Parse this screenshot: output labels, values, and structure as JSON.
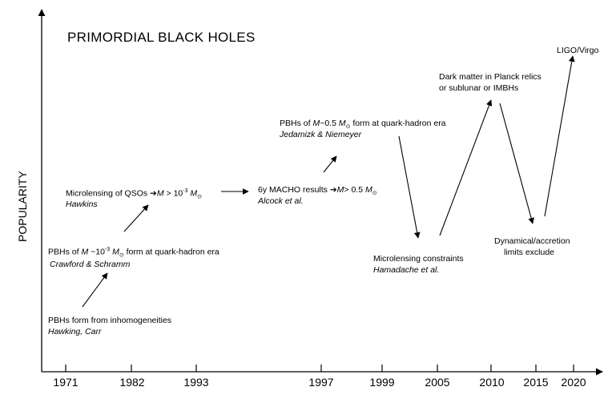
{
  "title": "PRIMORDIAL BLACK HOLES",
  "ylabel": "POPULARITY",
  "years": [
    "1971",
    "1982",
    "1993",
    "1997",
    "1999",
    "2005",
    "2010",
    "2015",
    "2020"
  ],
  "events": {
    "pbh_inhomogeneities": {
      "text": "PBHs form from inhomogeneities",
      "cite": "Hawking, Carr"
    },
    "pbh_quark_hadron_1": {
      "prefix": "PBHs of ",
      "mid": " ~10",
      "exp": "-3",
      "suffix": " form at quark-hadron era",
      "cite": "Crawford & Schramm"
    },
    "microlensing_qsos": {
      "prefix": "Microlensing of QSOs ",
      "mid": " > 10",
      "exp": "-3",
      "cite": "Hawkins"
    },
    "macho": {
      "prefix": "6y MACHO results ",
      "mid": "> 0.5 ",
      "cite": "Alcock et al."
    },
    "pbh_quark_hadron_2": {
      "prefix": "PBHs of ",
      "mid": "~0.5 ",
      "suffix": " form at quark-hadron era",
      "cite": "Jedamizk & Niemeyer"
    },
    "microlensing_constraints": {
      "text": "Microlensing constraints",
      "cite": "Hamadache et al."
    },
    "dark_matter": {
      "line1": "Dark  matter in Planck relics",
      "line2": "or sublunar or IMBHs"
    },
    "dynamical": {
      "line1": "Dynamical/accretion",
      "line2": "limits exclude"
    },
    "ligo": {
      "text": "LIGO/Virgo"
    }
  },
  "symbols": {
    "mass": "M",
    "sun": "⊙",
    "arrow": "➔"
  }
}
